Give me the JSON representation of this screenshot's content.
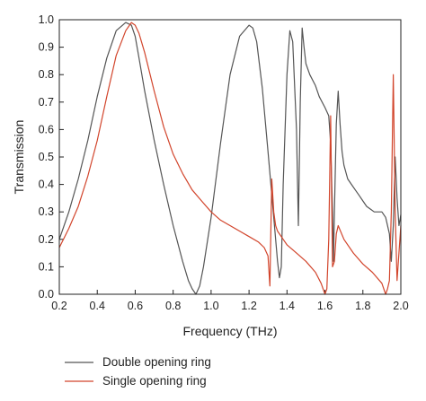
{
  "chart_data": {
    "type": "line",
    "xlabel": "Frequency (THz)",
    "ylabel": "Transmission",
    "xlim": [
      0.2,
      2.0
    ],
    "ylim": [
      0.0,
      1.0
    ],
    "x_ticks": [
      "0.2",
      "0.4",
      "0.6",
      "0.8",
      "1.0",
      "1.2",
      "1.4",
      "1.6",
      "1.8",
      "2.0"
    ],
    "y_ticks": [
      "0.0",
      "0.1",
      "0.2",
      "0.3",
      "0.4",
      "0.5",
      "0.6",
      "0.7",
      "0.8",
      "0.9",
      "1.0"
    ],
    "grid": false,
    "legend_position": "bottom-left, below plot",
    "series": [
      {
        "name": "Double opening ring",
        "color": "#555555",
        "x": [
          0.2,
          0.25,
          0.3,
          0.35,
          0.4,
          0.45,
          0.5,
          0.55,
          0.58,
          0.6,
          0.62,
          0.65,
          0.7,
          0.75,
          0.8,
          0.85,
          0.88,
          0.9,
          0.92,
          0.94,
          0.96,
          1.0,
          1.05,
          1.1,
          1.15,
          1.2,
          1.22,
          1.24,
          1.27,
          1.3,
          1.33,
          1.35,
          1.36,
          1.37,
          1.38,
          1.4,
          1.415,
          1.43,
          1.45,
          1.46,
          1.47,
          1.48,
          1.49,
          1.5,
          1.52,
          1.55,
          1.57,
          1.6,
          1.62,
          1.63,
          1.64,
          1.645,
          1.65,
          1.66,
          1.67,
          1.68,
          1.69,
          1.7,
          1.72,
          1.74,
          1.76,
          1.78,
          1.8,
          1.82,
          1.84,
          1.86,
          1.88,
          1.9,
          1.92,
          1.94,
          1.95,
          1.96,
          1.97,
          1.98,
          1.99,
          2.0
        ],
        "y": [
          0.2,
          0.3,
          0.42,
          0.56,
          0.72,
          0.86,
          0.96,
          0.99,
          0.98,
          0.94,
          0.86,
          0.74,
          0.56,
          0.4,
          0.25,
          0.12,
          0.05,
          0.02,
          0.0,
          0.03,
          0.1,
          0.28,
          0.55,
          0.8,
          0.94,
          0.98,
          0.97,
          0.92,
          0.75,
          0.52,
          0.28,
          0.12,
          0.06,
          0.1,
          0.4,
          0.8,
          0.96,
          0.92,
          0.6,
          0.25,
          0.7,
          0.97,
          0.9,
          0.84,
          0.8,
          0.76,
          0.72,
          0.68,
          0.65,
          0.55,
          0.3,
          0.12,
          0.3,
          0.62,
          0.74,
          0.62,
          0.52,
          0.47,
          0.42,
          0.4,
          0.38,
          0.36,
          0.34,
          0.32,
          0.31,
          0.3,
          0.3,
          0.3,
          0.28,
          0.22,
          0.12,
          0.25,
          0.5,
          0.35,
          0.25,
          0.29
        ]
      },
      {
        "name": "Single opening ring",
        "color": "#d2452c",
        "x": [
          0.2,
          0.25,
          0.3,
          0.35,
          0.4,
          0.45,
          0.5,
          0.55,
          0.58,
          0.6,
          0.62,
          0.65,
          0.7,
          0.75,
          0.8,
          0.85,
          0.9,
          0.95,
          1.0,
          1.05,
          1.1,
          1.15,
          1.2,
          1.25,
          1.28,
          1.3,
          1.31,
          1.32,
          1.33,
          1.34,
          1.35,
          1.38,
          1.4,
          1.45,
          1.5,
          1.55,
          1.58,
          1.6,
          1.61,
          1.62,
          1.63,
          1.64,
          1.65,
          1.66,
          1.67,
          1.7,
          1.75,
          1.8,
          1.85,
          1.9,
          1.92,
          1.93,
          1.94,
          1.95,
          1.96,
          1.97,
          1.98,
          1.99,
          2.0
        ],
        "y": [
          0.17,
          0.24,
          0.32,
          0.43,
          0.56,
          0.72,
          0.87,
          0.96,
          0.99,
          0.98,
          0.95,
          0.88,
          0.74,
          0.61,
          0.51,
          0.44,
          0.38,
          0.34,
          0.3,
          0.27,
          0.25,
          0.23,
          0.21,
          0.19,
          0.17,
          0.14,
          0.03,
          0.42,
          0.3,
          0.25,
          0.23,
          0.2,
          0.18,
          0.15,
          0.12,
          0.08,
          0.04,
          0.0,
          0.02,
          0.2,
          0.65,
          0.1,
          0.12,
          0.22,
          0.25,
          0.2,
          0.15,
          0.11,
          0.08,
          0.04,
          0.0,
          0.02,
          0.05,
          0.3,
          0.8,
          0.3,
          0.05,
          0.15,
          0.25
        ]
      }
    ]
  }
}
